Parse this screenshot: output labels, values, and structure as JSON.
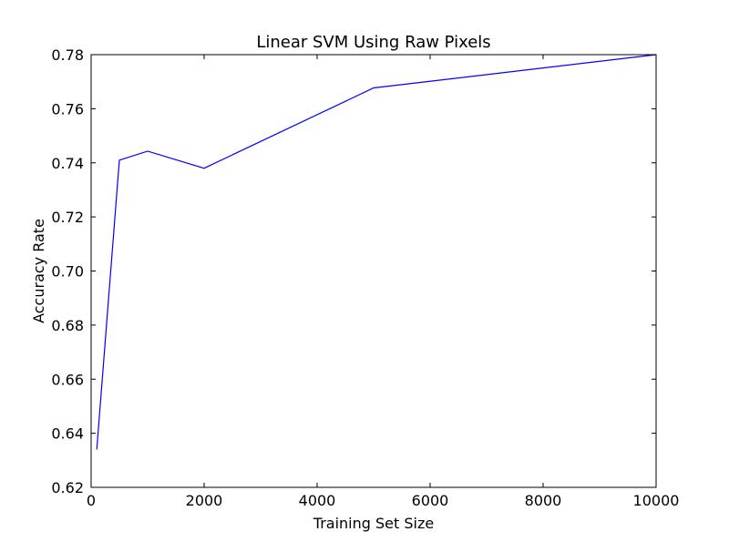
{
  "chart_data": {
    "type": "line",
    "title": "Linear SVM Using Raw Pixels",
    "xlabel": "Training Set Size",
    "ylabel": "Accuracy Rate",
    "xlim": [
      0,
      10000
    ],
    "ylim": [
      0.62,
      0.78
    ],
    "xticks": [
      0,
      2000,
      4000,
      6000,
      8000,
      10000
    ],
    "xtick_labels": [
      "0",
      "2000",
      "4000",
      "6000",
      "8000",
      "10000"
    ],
    "yticks": [
      0.62,
      0.64,
      0.66,
      0.68,
      0.7,
      0.72,
      0.74,
      0.76,
      0.78
    ],
    "ytick_labels": [
      "0.62",
      "0.64",
      "0.66",
      "0.68",
      "0.70",
      "0.72",
      "0.74",
      "0.76",
      "0.78"
    ],
    "grid": false,
    "legend": "none",
    "series": [
      {
        "color": "#0000ff",
        "x": [
          100,
          500,
          1000,
          2000,
          5000,
          10000
        ],
        "y": [
          0.634,
          0.741,
          0.7443,
          0.738,
          0.7677,
          0.78
        ]
      }
    ]
  }
}
